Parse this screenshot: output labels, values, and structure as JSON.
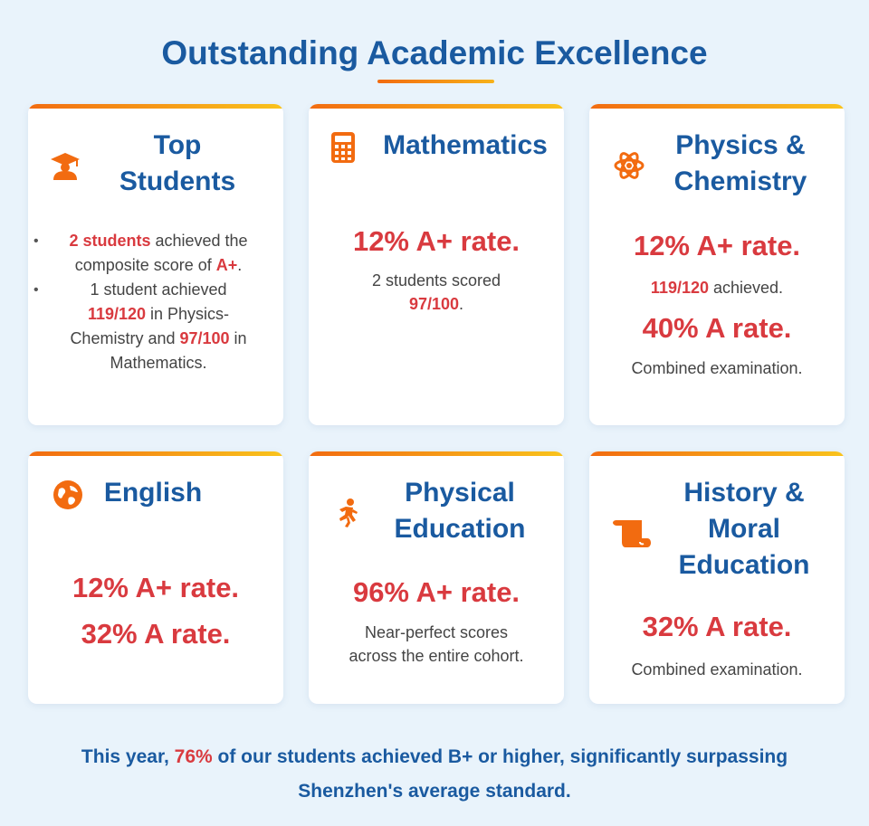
{
  "page": {
    "title": "Outstanding Academic Excellence"
  },
  "cards": {
    "top_students": {
      "title_line1": "Top",
      "title_line2": "Students",
      "icon": "graduate-icon",
      "bullet1": {
        "highlight1": "2 students",
        "text1": " achieved the composite score of ",
        "highlight2": "A+",
        "text2": "."
      },
      "bullet2": {
        "text1": "1 student achieved ",
        "highlight1": "119/120",
        "text2": " in Physics-Chemistry and ",
        "highlight2": "97/100",
        "text3": " in Mathematics."
      }
    },
    "mathematics": {
      "title": "Mathematics",
      "icon": "calculator-icon",
      "rate": "12% A+ rate.",
      "note_text": "2 students scored",
      "note_highlight": "97/100",
      "note_end": "."
    },
    "physics_chemistry": {
      "title_line1": "Physics &",
      "title_line2": "Chemistry",
      "icon": "atom-icon",
      "rate1": "12% A+ rate.",
      "note1_highlight": "119/120",
      "note1_text": " achieved.",
      "rate2": "40% A rate.",
      "note2": "Combined examination."
    },
    "english": {
      "title": "English",
      "icon": "globe-icon",
      "rate1": "12% A+ rate.",
      "rate2": "32% A rate."
    },
    "physical_education": {
      "title_line1": "Physical",
      "title_line2": "Education",
      "icon": "runner-icon",
      "rate": "96% A+ rate.",
      "note_line1": "Near-perfect scores",
      "note_line2": "across the entire cohort."
    },
    "history_moral": {
      "title_line1": "History &",
      "title_line2": "Moral",
      "title_line3": "Education",
      "icon": "scroll-icon",
      "rate": "32% A rate.",
      "note": "Combined examination."
    }
  },
  "footer": {
    "text1": "This year, ",
    "highlight": "76%",
    "text2": " of our students achieved B+ or higher, significantly surpassing",
    "line2": "Shenzhen's average standard."
  },
  "colors": {
    "title_blue": "#1a5aa0",
    "accent_red": "#d93a3f",
    "accent_orange": "#f26b10",
    "background": "#e9f3fb"
  }
}
